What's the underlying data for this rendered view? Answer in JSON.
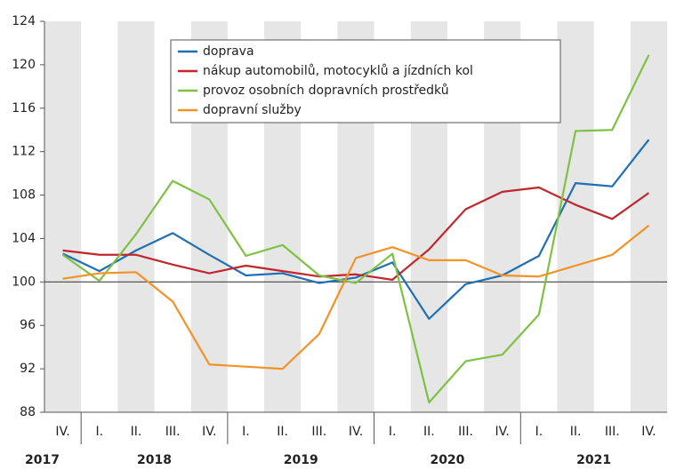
{
  "chart_data": {
    "type": "line",
    "categories": [
      "IV.",
      "I.",
      "II.",
      "III.",
      "IV.",
      "I.",
      "II.",
      "III.",
      "IV.",
      "I.",
      "II.",
      "III.",
      "IV.",
      "I.",
      "II.",
      "III.",
      "IV."
    ],
    "years": [
      "2017",
      "2018",
      "2019",
      "2020",
      "2021"
    ],
    "series": [
      {
        "name": "doprava",
        "color": "#1f6fb5",
        "values": [
          102.6,
          101.0,
          102.9,
          104.5,
          102.5,
          100.6,
          100.8,
          99.9,
          100.4,
          101.8,
          96.6,
          99.8,
          100.6,
          102.4,
          109.1,
          108.8,
          113.1
        ]
      },
      {
        "name": "nákup automobilů, motocyklů a jízdních kol",
        "color": "#c0272d",
        "values": [
          102.9,
          102.5,
          102.5,
          101.6,
          100.8,
          101.5,
          101.0,
          100.5,
          100.7,
          100.2,
          103.0,
          106.7,
          108.3,
          108.7,
          107.1,
          105.8,
          108.2
        ]
      },
      {
        "name": "provoz osobních dopravních prostředků",
        "color": "#7dc242",
        "values": [
          102.5,
          100.1,
          104.4,
          109.3,
          107.6,
          102.4,
          103.4,
          100.6,
          99.9,
          102.6,
          88.9,
          92.7,
          93.3,
          97.0,
          113.9,
          114.0,
          120.9
        ]
      },
      {
        "name": "dopravní služby",
        "color": "#f39325",
        "values": [
          100.3,
          100.8,
          100.9,
          98.2,
          92.4,
          92.2,
          92.0,
          95.2,
          102.2,
          103.2,
          102.0,
          102.0,
          100.6,
          100.5,
          101.5,
          102.5,
          105.2
        ]
      }
    ],
    "ylim": [
      88,
      124
    ],
    "yticks": [
      88,
      92,
      96,
      100,
      104,
      108,
      112,
      116,
      120,
      124
    ],
    "reference_line": 100,
    "stripes": true,
    "legend": "top-center"
  }
}
